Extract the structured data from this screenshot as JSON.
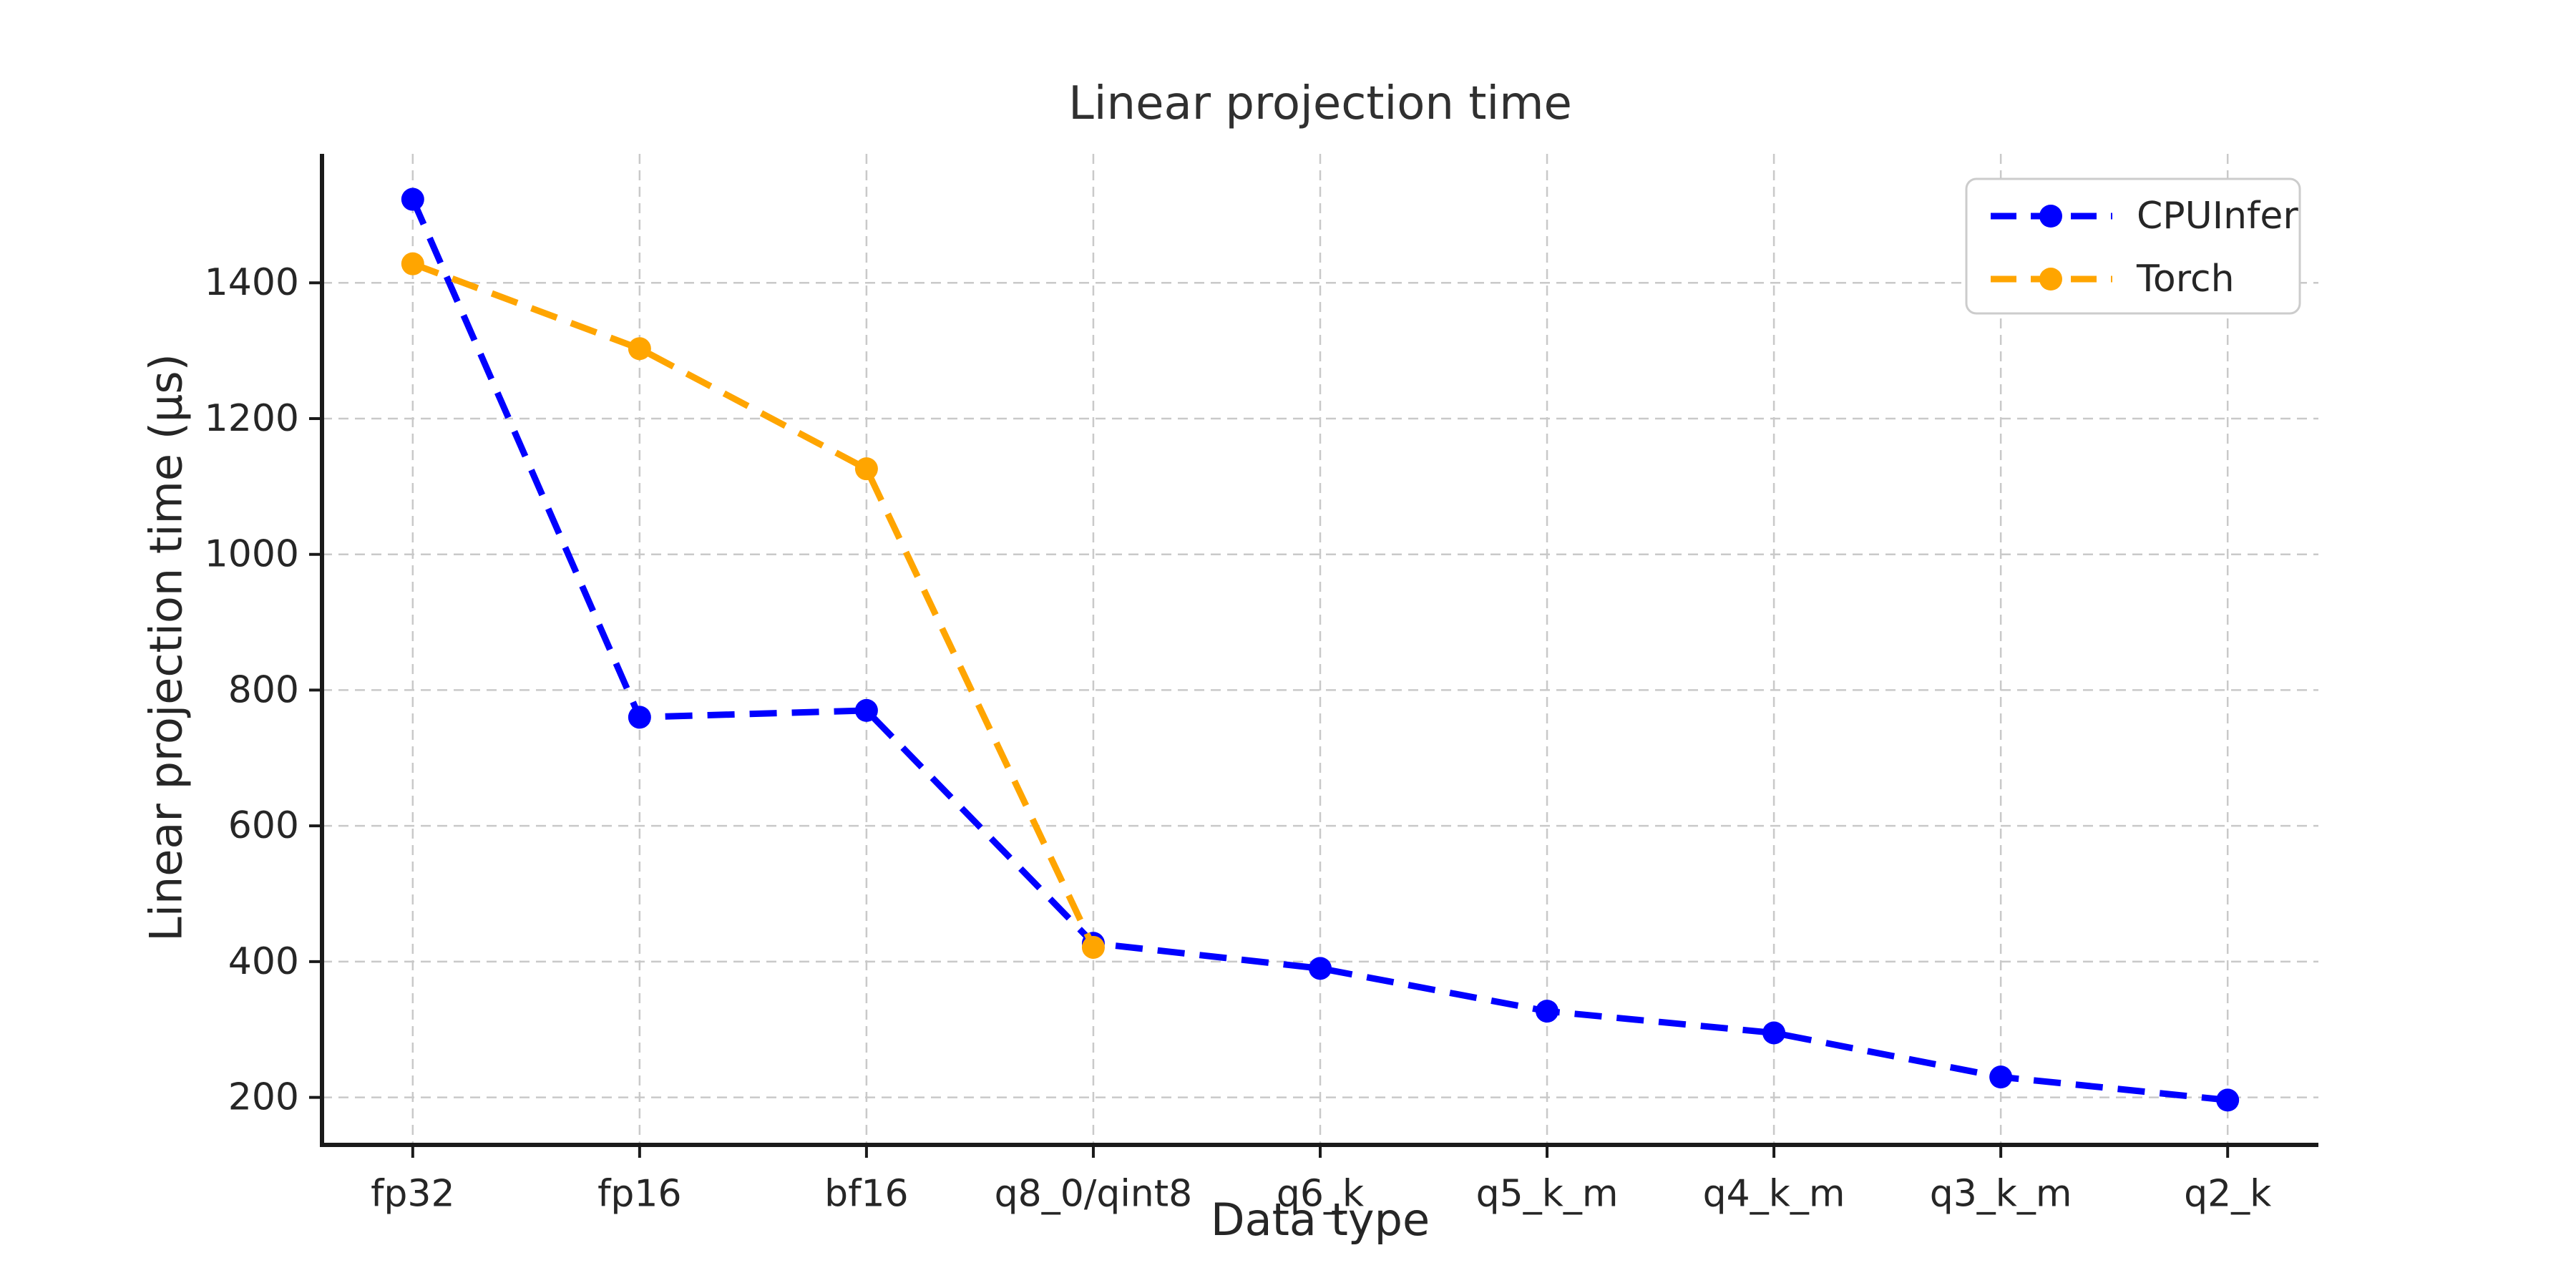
{
  "chart_data": {
    "type": "line",
    "title": "Linear projection time",
    "xlabel": "Data type",
    "ylabel": "Linear projection time (μs)",
    "categories": [
      "fp32",
      "fp16",
      "bf16",
      "q8_0/qint8",
      "q6_k",
      "q5_k_m",
      "q4_k_m",
      "q3_k_m",
      "q2_k"
    ],
    "series": [
      {
        "name": "CPUInfer",
        "color": "#0000ff",
        "values": [
          1523,
          760,
          770,
          427,
          390,
          327,
          295,
          230,
          196
        ]
      },
      {
        "name": "Torch",
        "color": "#ffa500",
        "values": [
          1428,
          1303,
          1126,
          421,
          null,
          null,
          null,
          null,
          null
        ]
      }
    ],
    "yticks": [
      200,
      400,
      600,
      800,
      1000,
      1200,
      1400
    ],
    "ylim": [
      130,
      1590
    ],
    "grid": true,
    "grid_style": "dashed",
    "line_style": "dashed",
    "marker": "circle",
    "legend_position": "upper right",
    "legend_labels": [
      "CPUInfer",
      "Torch"
    ],
    "colors": {
      "background": "#ffffff",
      "grid": "#c9c9c9",
      "spine": "#1a1a1a",
      "tick_text": "#262626",
      "title_text": "#303030"
    }
  }
}
